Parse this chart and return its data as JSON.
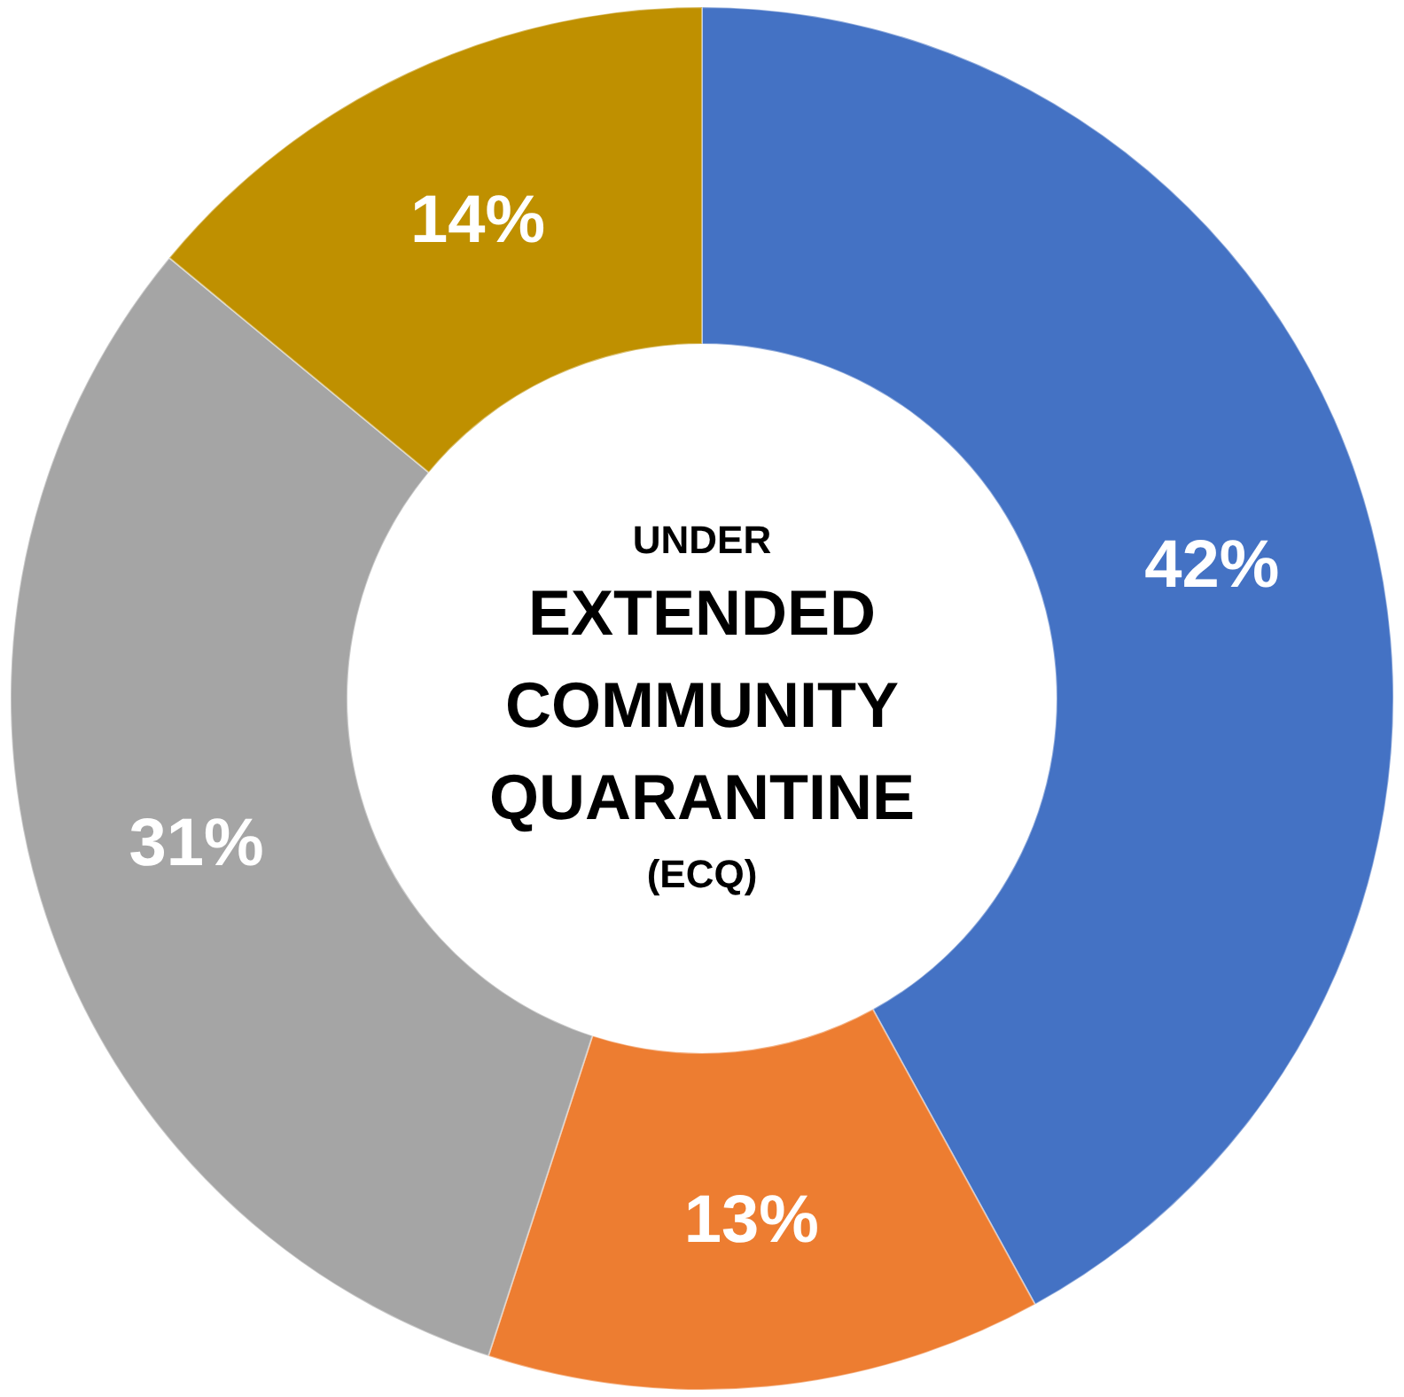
{
  "chart_data": {
    "type": "donut",
    "categories": [
      null,
      null,
      null,
      null
    ],
    "values": [
      42,
      13,
      31,
      14
    ],
    "colors": [
      "#4472c4",
      "#ed7d31",
      "#a5a5a5",
      "#bf9000"
    ],
    "value_labels": [
      "42%",
      "13%",
      "31%",
      "14%"
    ],
    "annotations": [
      "UNDER",
      "EXTENDED",
      "COMMUNITY",
      "QUARANTINE",
      "(ECQ)"
    ]
  }
}
